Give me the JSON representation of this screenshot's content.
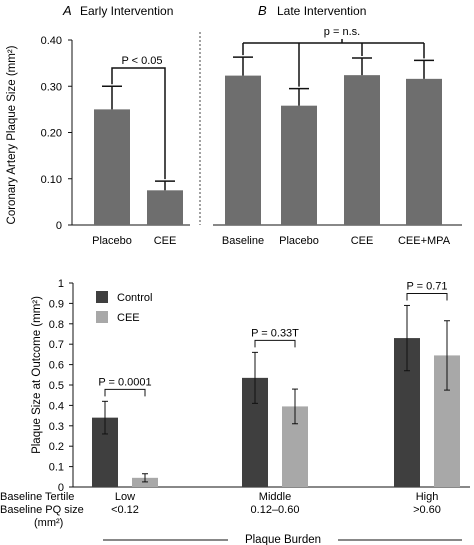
{
  "colors": {
    "bar_top": "#6e6e6e",
    "control": "#3f3f3f",
    "cee": "#a8a8a8",
    "axis": "#111111"
  },
  "chart_data": [
    {
      "type": "bar",
      "panel_letter": "A",
      "title": "Early Intervention",
      "ylabel": "Coronary Artery Plaque Size (mm²)",
      "ylim": [
        0,
        0.4
      ],
      "yticks": [
        "0",
        "0.10",
        "0.20",
        "0.30",
        "0.40"
      ],
      "categories": [
        "Placebo",
        "CEE"
      ],
      "values": [
        0.25,
        0.075
      ],
      "errors": [
        0.05,
        0.02
      ],
      "annotation": "P < 0.05"
    },
    {
      "type": "bar",
      "panel_letter": "B",
      "title": "Late Intervention",
      "ylim": [
        0,
        0.4
      ],
      "categories": [
        "Baseline",
        "Placebo",
        "CEE",
        "CEE+MPA"
      ],
      "values": [
        0.323,
        0.258,
        0.324,
        0.316
      ],
      "errors": [
        0.04,
        0.037,
        0.037,
        0.04
      ],
      "annotation": "p = n.s."
    },
    {
      "type": "bar",
      "ylabel": "Plaque Size at Outcome (mm²)",
      "xlabel": "Plaque Burden",
      "ylim": [
        0,
        1
      ],
      "yticks": [
        "0",
        "0.1",
        "0.2",
        "0.3",
        "0.4",
        "0.5",
        "0.6",
        "0.7",
        "0.8",
        "0.9",
        "1"
      ],
      "legend_position": "top-left",
      "series": [
        {
          "name": "Control",
          "values": [
            0.34,
            0.535,
            0.73
          ],
          "errors": [
            0.08,
            0.125,
            0.16
          ]
        },
        {
          "name": "CEE",
          "values": [
            0.045,
            0.395,
            0.645
          ],
          "errors": [
            0.02,
            0.085,
            0.17
          ]
        }
      ],
      "row_labels": [
        "Baseline Tertile",
        "Baseline PQ size",
        "(mm²)"
      ],
      "groups": [
        {
          "tertile": "Low",
          "pq": "<0.12"
        },
        {
          "tertile": "Middle",
          "pq": "0.12–0.60"
        },
        {
          "tertile": "High",
          "pq": ">0.60"
        }
      ],
      "annotations": [
        "P = 0.0001",
        "P = 0.33T",
        "P = 0.71"
      ]
    }
  ]
}
